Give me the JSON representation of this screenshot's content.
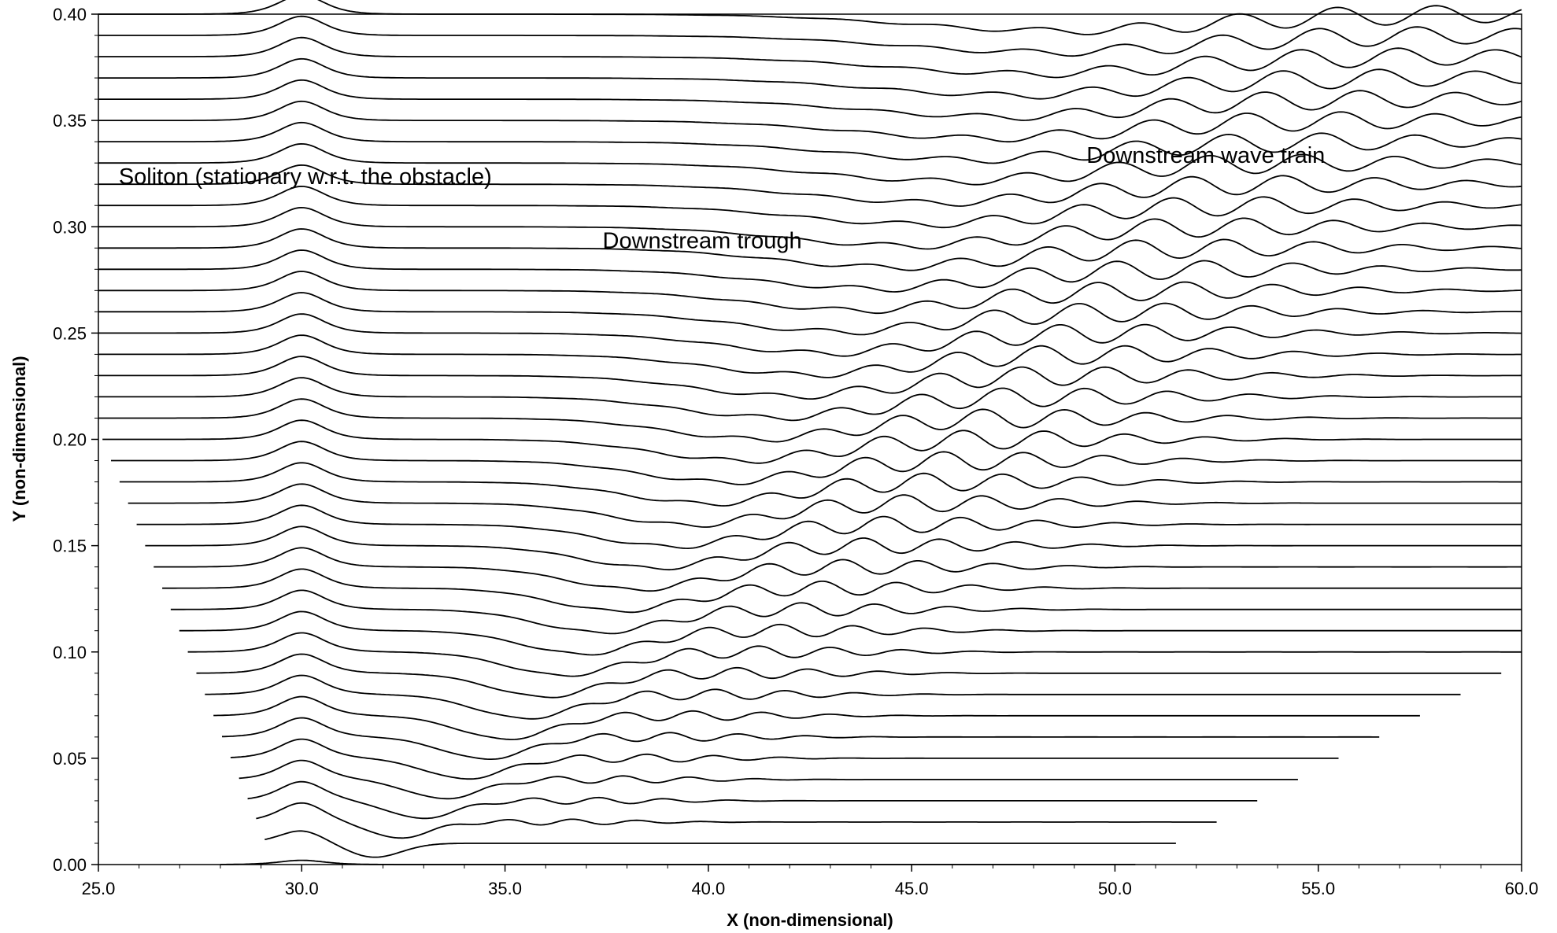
{
  "chart_data": {
    "type": "line",
    "title": "",
    "xlabel": "X (non-dimensional)",
    "ylabel": "Y (non-dimensional)",
    "xlim": [
      25.0,
      60.0
    ],
    "ylim": [
      0.0,
      0.4
    ],
    "x_ticks": [
      "25.0",
      "30.0",
      "35.0",
      "40.0",
      "45.0",
      "50.0",
      "55.0",
      "60.0"
    ],
    "y_ticks": [
      "0.00",
      "0.05",
      "0.10",
      "0.15",
      "0.20",
      "0.25",
      "0.30",
      "0.35",
      "0.40"
    ],
    "grid": false,
    "legend": "none",
    "line_color": "#000000",
    "annotations": [
      {
        "text": "Soliton (stationary w.r.t. the obstacle)",
        "x": 25.5,
        "y": 0.32
      },
      {
        "text": "Downstream trough",
        "x": 37.4,
        "y": 0.29
      },
      {
        "text": "Downstream wave train",
        "x": 49.3,
        "y": 0.33
      }
    ],
    "profile_series": {
      "count": 41,
      "baseline_start": 0.0,
      "baseline_step": 0.01,
      "soliton_center_x": 30.0,
      "soliton_amplitude_first": 0.002,
      "soliton_amplitude_typical": 0.009,
      "soliton_width": 0.75,
      "trough_min_y": [
        0.004,
        0.018,
        0.026
      ],
      "wave_train_peak_x_last": 49.6,
      "first_series_x_range": [
        28.0,
        50.5
      ],
      "last_series_x_range": [
        28.0,
        60.0
      ]
    }
  }
}
